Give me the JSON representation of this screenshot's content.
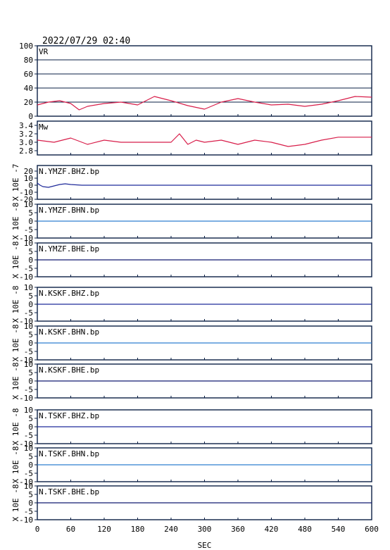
{
  "timestamp": "2022/07/29  02:40",
  "chart_data": [
    {
      "type": "line",
      "panel": "VR",
      "title": "VR",
      "ylim": [
        0,
        100
      ],
      "yticks": [
        "0",
        "20",
        "40",
        "60",
        "80",
        "100"
      ],
      "grid": true,
      "color": "#d81e4a",
      "x": [
        0,
        20,
        40,
        60,
        75,
        90,
        120,
        150,
        180,
        210,
        240,
        270,
        300,
        330,
        360,
        390,
        420,
        450,
        480,
        510,
        540,
        570,
        600
      ],
      "y": [
        16,
        20,
        22,
        18,
        9,
        14,
        18,
        20,
        16,
        28,
        22,
        15,
        10,
        20,
        25,
        20,
        16,
        17,
        14,
        17,
        22,
        28,
        27
      ]
    },
    {
      "type": "line",
      "panel": "Mw",
      "title": "Mw",
      "ylim": [
        2.7,
        3.5
      ],
      "yticks": [
        "2.8",
        "3.0",
        "3.2",
        "3.4"
      ],
      "grid": false,
      "color": "#d81e4a",
      "x": [
        0,
        30,
        60,
        90,
        120,
        150,
        180,
        210,
        240,
        255,
        270,
        285,
        300,
        330,
        360,
        390,
        420,
        450,
        480,
        510,
        540,
        570,
        600
      ],
      "y": [
        3.05,
        3.0,
        3.1,
        2.95,
        3.05,
        3.0,
        3.0,
        3.0,
        3.0,
        3.2,
        2.95,
        3.05,
        3.0,
        3.05,
        2.95,
        3.05,
        3.0,
        2.9,
        2.95,
        3.05,
        3.12,
        3.12,
        3.12
      ]
    },
    {
      "type": "line",
      "panel": "N.YMZF.BHZ.bp",
      "title": "N.YMZF.BHZ.bp",
      "ylabel": "X 10E -7",
      "ylim": [
        -20,
        28
      ],
      "yticks": [
        "-20",
        "-10",
        "0",
        "10",
        "20"
      ],
      "color": "#1f2a9a",
      "x": [
        0,
        5,
        10,
        20,
        30,
        40,
        50,
        60,
        80,
        100,
        600
      ],
      "y": [
        3,
        0,
        -2,
        -3,
        -1,
        1,
        2,
        1,
        0,
        0,
        0
      ]
    },
    {
      "type": "line",
      "panel": "N.YMZF.BHN.bp",
      "title": "N.YMZF.BHN.bp",
      "ylabel": "X 10E -8",
      "ylim": [
        -10,
        10
      ],
      "yticks": [
        "-10",
        "-5",
        "0",
        "5",
        "10"
      ],
      "color": "#2f7fd0",
      "x": [
        0,
        600
      ],
      "y": [
        0,
        0
      ]
    },
    {
      "type": "line",
      "panel": "N.YMZF.BHE.bp",
      "title": "N.YMZF.BHE.bp",
      "ylabel": "X 10E -8",
      "ylim": [
        -10,
        10
      ],
      "yticks": [
        "-10",
        "-5",
        "0",
        "5",
        "10"
      ],
      "color": "#101a70",
      "x": [
        0,
        600
      ],
      "y": [
        0,
        0
      ]
    },
    {
      "type": "line",
      "panel": "N.KSKF.BHZ.bp",
      "title": "N.KSKF.BHZ.bp",
      "ylabel": "X 10E -8",
      "ylim": [
        -10,
        10
      ],
      "yticks": [
        "-10",
        "-5",
        "0",
        "5",
        "10"
      ],
      "color": "#1f2a9a",
      "x": [
        0,
        600
      ],
      "y": [
        0,
        0
      ]
    },
    {
      "type": "line",
      "panel": "N.KSKF.BHN.bp",
      "title": "N.KSKF.BHN.bp",
      "ylabel": "X 10E -8",
      "ylim": [
        -10,
        10
      ],
      "yticks": [
        "-10",
        "-5",
        "0",
        "5",
        "10"
      ],
      "color": "#2f7fd0",
      "x": [
        0,
        600
      ],
      "y": [
        0,
        0
      ]
    },
    {
      "type": "line",
      "panel": "N.KSKF.BHE.bp",
      "title": "N.KSKF.BHE.bp",
      "ylabel": "X 10E -8",
      "ylim": [
        -10,
        10
      ],
      "yticks": [
        "-10",
        "-5",
        "0",
        "5",
        "10"
      ],
      "color": "#101a70",
      "x": [
        0,
        600
      ],
      "y": [
        0,
        0
      ]
    },
    {
      "type": "line",
      "panel": "N.TSKF.BHZ.bp",
      "title": "N.TSKF.BHZ.bp",
      "ylabel": "X 10E -8",
      "ylim": [
        -10,
        10
      ],
      "yticks": [
        "-10",
        "-5",
        "0",
        "5",
        "10"
      ],
      "color": "#1f2a9a",
      "x": [
        0,
        600
      ],
      "y": [
        0,
        0
      ]
    },
    {
      "type": "line",
      "panel": "N.TSKF.BHN.bp",
      "title": "N.TSKF.BHN.bp",
      "ylabel": "X 10E -8",
      "ylim": [
        -10,
        10
      ],
      "yticks": [
        "-10",
        "-5",
        "0",
        "5",
        "10"
      ],
      "color": "#2f7fd0",
      "x": [
        0,
        600
      ],
      "y": [
        0,
        0
      ]
    },
    {
      "type": "line",
      "panel": "N.TSKF.BHE.bp",
      "title": "N.TSKF.BHE.bp",
      "ylabel": "X 10E -8",
      "ylim": [
        -10,
        10
      ],
      "yticks": [
        "-10",
        "-5",
        "0",
        "5",
        "10"
      ],
      "color": "#101a70",
      "x": [
        0,
        600
      ],
      "y": [
        0,
        0
      ]
    }
  ],
  "x_axis": {
    "label": "SEC",
    "xlim": [
      0,
      600
    ],
    "ticks": [
      "0",
      "60",
      "120",
      "180",
      "240",
      "300",
      "360",
      "420",
      "480",
      "540",
      "600"
    ]
  }
}
